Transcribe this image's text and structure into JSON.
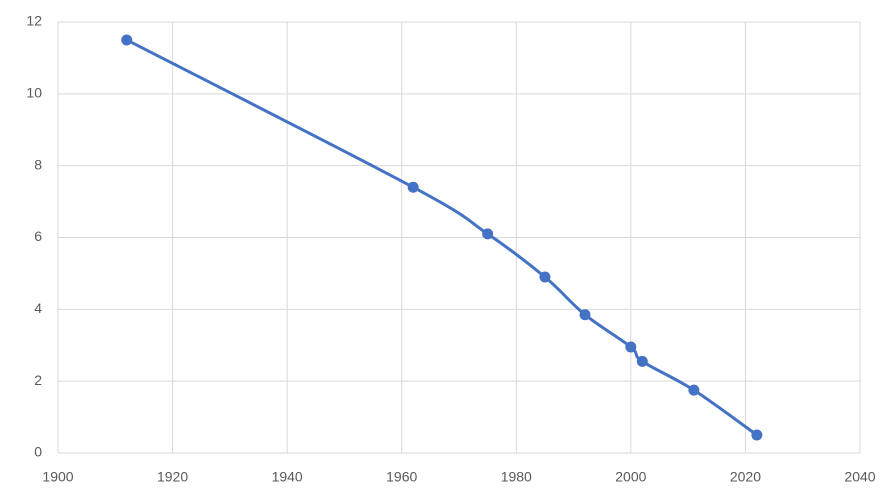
{
  "chart_data": {
    "type": "line",
    "x": [
      1912,
      1962,
      1975,
      1985,
      1992,
      2000,
      2002,
      2011,
      2022
    ],
    "series": [
      {
        "color": "#4472c4",
        "values": [
          11.5,
          7.4,
          6.1,
          4.9,
          3.85,
          2.95,
          2.55,
          1.75,
          0.5
        ]
      }
    ],
    "xlim": [
      1900,
      2040
    ],
    "xticks": [
      1900,
      1920,
      1940,
      1960,
      1980,
      2000,
      2020,
      2040
    ],
    "ylim": [
      0,
      12
    ],
    "yticks": [
      0,
      2,
      4,
      6,
      8,
      10,
      12
    ],
    "grid": true,
    "smooth": true
  }
}
